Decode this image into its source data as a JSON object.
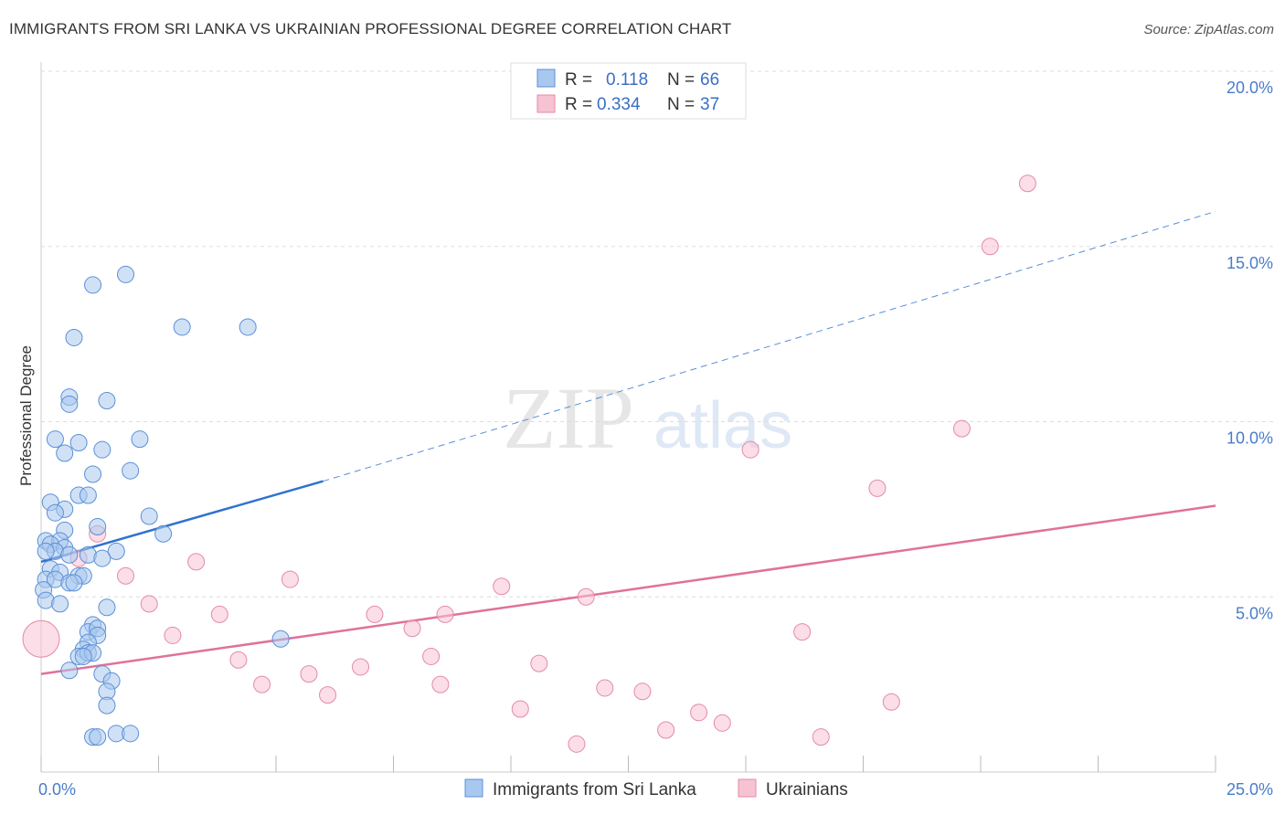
{
  "title": "IMMIGRANTS FROM SRI LANKA VS UKRAINIAN PROFESSIONAL DEGREE CORRELATION CHART",
  "source": "Source: ZipAtlas.com",
  "watermark": {
    "zip": "ZIP",
    "atlas": "atlas"
  },
  "colors": {
    "blue_fill": "#a9c8ef",
    "blue_stroke": "#5b8fd6",
    "blue_line": "#2f72cf",
    "pink_fill": "#f7c3d3",
    "pink_stroke": "#e48aa8",
    "pink_line": "#e0719a",
    "grid": "#dddddd",
    "tick_label": "#4a7cc9"
  },
  "legend": {
    "r_label": "R =",
    "n_label": "N =",
    "entries": [
      {
        "r": "0.118",
        "n": "66"
      },
      {
        "r": "0.334",
        "n": "37"
      }
    ]
  },
  "chart_data": {
    "type": "scatter",
    "title": "IMMIGRANTS FROM SRI LANKA VS UKRAINIAN PROFESSIONAL DEGREE CORRELATION CHART",
    "ylabel": "Professional Degree",
    "xlim": [
      0,
      25
    ],
    "ylim": [
      0,
      20
    ],
    "x_tick_labels": [
      "0.0%",
      "25.0%"
    ],
    "y_ticks": [
      5,
      10,
      15,
      20
    ],
    "y_tick_labels": [
      "5.0%",
      "10.0%",
      "15.0%",
      "20.0%"
    ],
    "series": [
      {
        "name": "Immigrants from Sri Lanka",
        "r": 0.118,
        "n": 66,
        "trend": {
          "x": [
            0,
            6
          ],
          "y": [
            6.0,
            8.3
          ],
          "dashed_to": [
            25,
            16.0
          ]
        },
        "points": [
          [
            1.8,
            14.2
          ],
          [
            1.1,
            13.9
          ],
          [
            3.0,
            12.7
          ],
          [
            4.4,
            12.7
          ],
          [
            0.7,
            12.4
          ],
          [
            0.6,
            10.7
          ],
          [
            1.4,
            10.6
          ],
          [
            0.6,
            10.5
          ],
          [
            0.3,
            9.5
          ],
          [
            2.1,
            9.5
          ],
          [
            0.8,
            9.4
          ],
          [
            1.3,
            9.2
          ],
          [
            0.5,
            9.1
          ],
          [
            1.9,
            8.6
          ],
          [
            1.1,
            8.5
          ],
          [
            0.8,
            7.9
          ],
          [
            1.0,
            7.9
          ],
          [
            0.2,
            7.7
          ],
          [
            0.5,
            7.5
          ],
          [
            0.3,
            7.4
          ],
          [
            2.3,
            7.3
          ],
          [
            1.2,
            7.0
          ],
          [
            0.5,
            6.9
          ],
          [
            2.6,
            6.8
          ],
          [
            0.1,
            6.6
          ],
          [
            0.4,
            6.6
          ],
          [
            0.2,
            6.5
          ],
          [
            0.5,
            6.4
          ],
          [
            0.3,
            6.3
          ],
          [
            0.1,
            6.3
          ],
          [
            1.6,
            6.3
          ],
          [
            1.0,
            6.2
          ],
          [
            0.6,
            6.2
          ],
          [
            1.3,
            6.1
          ],
          [
            0.2,
            5.8
          ],
          [
            0.4,
            5.7
          ],
          [
            0.8,
            5.6
          ],
          [
            0.9,
            5.6
          ],
          [
            0.1,
            5.5
          ],
          [
            0.3,
            5.5
          ],
          [
            0.6,
            5.4
          ],
          [
            0.7,
            5.4
          ],
          [
            0.05,
            5.2
          ],
          [
            0.1,
            4.9
          ],
          [
            0.4,
            4.8
          ],
          [
            1.4,
            4.7
          ],
          [
            1.1,
            4.2
          ],
          [
            1.0,
            4.0
          ],
          [
            1.2,
            4.1
          ],
          [
            1.2,
            3.9
          ],
          [
            5.1,
            3.8
          ],
          [
            1.0,
            3.7
          ],
          [
            0.9,
            3.5
          ],
          [
            0.8,
            3.3
          ],
          [
            1.0,
            3.4
          ],
          [
            1.1,
            3.4
          ],
          [
            0.9,
            3.3
          ],
          [
            0.6,
            2.9
          ],
          [
            1.3,
            2.8
          ],
          [
            1.5,
            2.6
          ],
          [
            1.4,
            2.3
          ],
          [
            1.4,
            1.9
          ],
          [
            1.1,
            1.0
          ],
          [
            1.6,
            1.1
          ],
          [
            1.9,
            1.1
          ],
          [
            1.2,
            1.0
          ]
        ]
      },
      {
        "name": "Ukrainians",
        "r": 0.334,
        "n": 37,
        "trend": {
          "x": [
            0,
            25
          ],
          "y": [
            2.8,
            7.6
          ]
        },
        "points": [
          [
            21.0,
            16.8
          ],
          [
            20.2,
            15.0
          ],
          [
            19.6,
            9.8
          ],
          [
            15.1,
            9.2
          ],
          [
            17.8,
            8.1
          ],
          [
            1.2,
            6.8
          ],
          [
            0.8,
            6.1
          ],
          [
            3.3,
            6.0
          ],
          [
            1.8,
            5.6
          ],
          [
            5.3,
            5.5
          ],
          [
            9.8,
            5.3
          ],
          [
            11.6,
            5.0
          ],
          [
            2.3,
            4.8
          ],
          [
            3.8,
            4.5
          ],
          [
            7.1,
            4.5
          ],
          [
            8.6,
            4.5
          ],
          [
            7.9,
            4.1
          ],
          [
            16.2,
            4.0
          ],
          [
            2.8,
            3.9
          ],
          [
            8.3,
            3.3
          ],
          [
            4.2,
            3.2
          ],
          [
            10.6,
            3.1
          ],
          [
            6.8,
            3.0
          ],
          [
            5.7,
            2.8
          ],
          [
            4.7,
            2.5
          ],
          [
            8.5,
            2.5
          ],
          [
            12.0,
            2.4
          ],
          [
            12.8,
            2.3
          ],
          [
            6.1,
            2.2
          ],
          [
            18.1,
            2.0
          ],
          [
            10.2,
            1.8
          ],
          [
            14.0,
            1.7
          ],
          [
            14.5,
            1.4
          ],
          [
            13.3,
            1.2
          ],
          [
            16.6,
            1.0
          ],
          [
            11.4,
            0.8
          ],
          [
            0.0,
            3.8
          ]
        ]
      }
    ]
  },
  "bottom_legend": [
    "Immigrants from Sri Lanka",
    "Ukrainians"
  ]
}
